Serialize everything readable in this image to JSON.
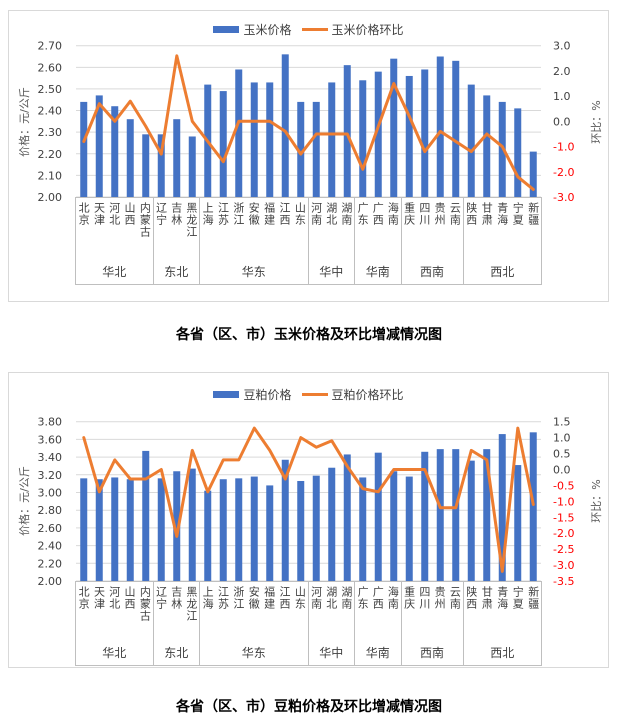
{
  "colors": {
    "bar": "#4472C4",
    "line": "#ED7D31",
    "grid": "#D9D9D9",
    "axis_text": "#404040",
    "negative_tick": "#FF0000",
    "frame_border": "#D9D9D9",
    "strip_border": "#BFBFBF"
  },
  "provinces": [
    "北京",
    "天津",
    "河北",
    "山西",
    "内蒙古",
    "辽宁",
    "吉林",
    "黑龙江",
    "上海",
    "江苏",
    "浙江",
    "安徽",
    "福建",
    "江西",
    "山东",
    "河南",
    "湖北",
    "湖南",
    "广东",
    "广西",
    "海南",
    "重庆",
    "四川",
    "贵州",
    "云南",
    "陕西",
    "甘肃",
    "青海",
    "宁夏",
    "新疆"
  ],
  "regions": [
    {
      "label": "华北",
      "count": 5
    },
    {
      "label": "东北",
      "count": 3
    },
    {
      "label": "华东",
      "count": 7
    },
    {
      "label": "华中",
      "count": 3
    },
    {
      "label": "华南",
      "count": 3
    },
    {
      "label": "西南",
      "count": 4
    },
    {
      "label": "西北",
      "count": 5
    }
  ],
  "chart_data": [
    {
      "type": "combo",
      "title": "各省（区、市）玉米价格及环比增减情况图",
      "legend_position": "top",
      "grid": true,
      "categories": [
        "北京",
        "天津",
        "河北",
        "山西",
        "内蒙古",
        "辽宁",
        "吉林",
        "黑龙江",
        "上海",
        "江苏",
        "浙江",
        "安徽",
        "福建",
        "江西",
        "山东",
        "河南",
        "湖北",
        "湖南",
        "广东",
        "广西",
        "海南",
        "重庆",
        "四川",
        "贵州",
        "云南",
        "陕西",
        "甘肃",
        "青海",
        "宁夏",
        "新疆"
      ],
      "series": [
        {
          "name": "玉米价格",
          "type": "bar",
          "axis": "left",
          "values": [
            2.44,
            2.47,
            2.42,
            2.36,
            2.29,
            2.29,
            2.36,
            2.28,
            2.52,
            2.49,
            2.59,
            2.53,
            2.53,
            2.66,
            2.44,
            2.44,
            2.53,
            2.61,
            2.54,
            2.58,
            2.64,
            2.56,
            2.59,
            2.65,
            2.63,
            2.52,
            2.47,
            2.44,
            2.41,
            2.21
          ]
        },
        {
          "name": "玉米价格环比",
          "type": "line",
          "axis": "right",
          "values": [
            -0.8,
            0.7,
            0.0,
            0.8,
            -0.2,
            -1.3,
            2.6,
            0.0,
            -0.8,
            -1.6,
            0.0,
            0.0,
            0.0,
            -0.4,
            -1.3,
            -0.5,
            -0.5,
            -0.5,
            -1.9,
            -0.2,
            1.5,
            0.2,
            -1.2,
            -0.4,
            -0.8,
            -1.2,
            -0.5,
            -1.0,
            -2.2,
            -2.7
          ]
        }
      ],
      "left_axis": {
        "label": "价格：元/公斤",
        "min": 2.0,
        "max": 2.7,
        "step": 0.1,
        "decimals": 2
      },
      "right_axis": {
        "label": "环比：%",
        "min": -3.0,
        "max": 3.0,
        "step": 1.0,
        "decimals": 1
      }
    },
    {
      "type": "combo",
      "title": "各省（区、市）豆粕价格及环比增减情况图",
      "legend_position": "top",
      "grid": true,
      "categories": [
        "北京",
        "天津",
        "河北",
        "山西",
        "内蒙古",
        "辽宁",
        "吉林",
        "黑龙江",
        "上海",
        "江苏",
        "浙江",
        "安徽",
        "福建",
        "江西",
        "山东",
        "河南",
        "湖北",
        "湖南",
        "广东",
        "广西",
        "海南",
        "重庆",
        "四川",
        "贵州",
        "云南",
        "陕西",
        "甘肃",
        "青海",
        "宁夏",
        "新疆"
      ],
      "series": [
        {
          "name": "豆粕价格",
          "type": "bar",
          "axis": "left",
          "values": [
            3.16,
            3.15,
            3.17,
            3.15,
            3.47,
            3.16,
            3.24,
            3.27,
            3.02,
            3.15,
            3.16,
            3.18,
            3.08,
            3.37,
            3.13,
            3.19,
            3.28,
            3.43,
            3.17,
            3.45,
            3.24,
            3.18,
            3.46,
            3.49,
            3.49,
            3.36,
            3.49,
            3.66,
            3.31,
            3.68
          ]
        },
        {
          "name": "豆粕价格环比",
          "type": "line",
          "axis": "right",
          "values": [
            1.0,
            -0.7,
            0.3,
            -0.3,
            -0.3,
            0.0,
            -2.1,
            0.6,
            -0.7,
            0.3,
            0.3,
            1.3,
            0.6,
            -0.3,
            1.0,
            0.7,
            0.9,
            0.1,
            -0.6,
            -0.7,
            0.0,
            0.0,
            0.0,
            -1.2,
            -1.2,
            0.6,
            0.3,
            -3.2,
            1.3,
            -1.1
          ]
        }
      ],
      "left_axis": {
        "label": "价格：元/公斤",
        "min": 2.0,
        "max": 3.8,
        "step": 0.2,
        "decimals": 2
      },
      "right_axis": {
        "label": "环比：%",
        "min": -3.5,
        "max": 1.5,
        "step": 0.5,
        "decimals": 1
      }
    }
  ]
}
